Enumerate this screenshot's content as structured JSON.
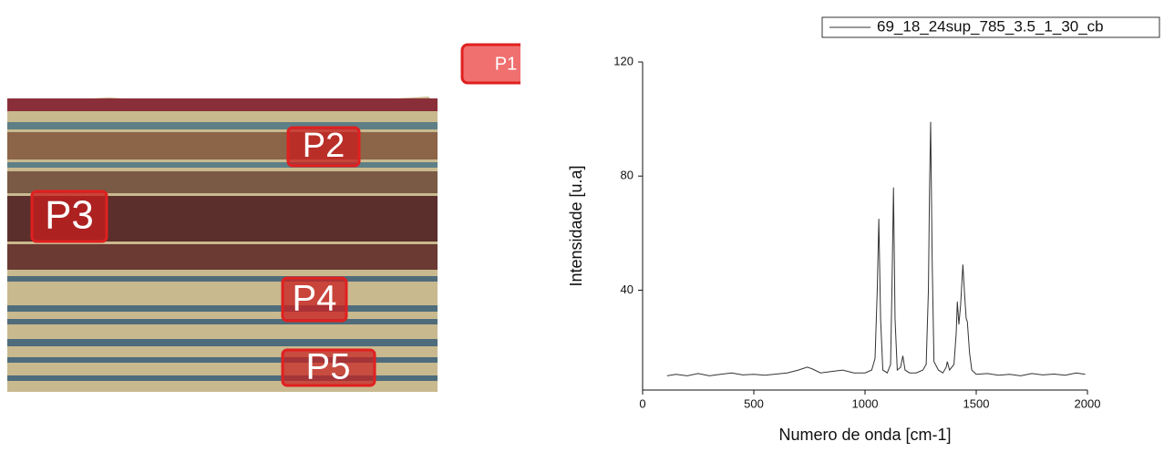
{
  "photo_labels": [
    "P1",
    "P2",
    "P3",
    "P4",
    "P5"
  ],
  "chart_data": {
    "type": "line",
    "xlabel": "Numero de onda [cm-1]",
    "ylabel": "Intensidade [u.a]",
    "x": [
      110,
      150,
      200,
      250,
      300,
      350,
      400,
      450,
      500,
      550,
      600,
      650,
      700,
      740,
      760,
      800,
      850,
      900,
      950,
      1000,
      1030,
      1045,
      1055,
      1062,
      1070,
      1080,
      1100,
      1115,
      1122,
      1128,
      1135,
      1145,
      1160,
      1170,
      1180,
      1200,
      1230,
      1260,
      1275,
      1285,
      1290,
      1295,
      1302,
      1310,
      1330,
      1350,
      1365,
      1370,
      1380,
      1400,
      1410,
      1415,
      1422,
      1430,
      1440,
      1448,
      1455,
      1460,
      1470,
      1480,
      1500,
      1550,
      1600,
      1650,
      1700,
      1750,
      1800,
      1850,
      1900,
      1950,
      1990
    ],
    "series": [
      {
        "name": "69_18_24sup_785_3.5_1_30_cb",
        "color": "#333333",
        "values": [
          10,
          10.5,
          10,
          10.8,
          10,
          10.5,
          11,
          10.3,
          10.5,
          10.2,
          10.6,
          11,
          12,
          13,
          12.5,
          11,
          11.5,
          12,
          11,
          11,
          12,
          16,
          40,
          65,
          30,
          12,
          11,
          14,
          45,
          76,
          30,
          12,
          13,
          17,
          12,
          11,
          11,
          12,
          14,
          40,
          75,
          99,
          50,
          15,
          12,
          11,
          13,
          15,
          12,
          14,
          25,
          36,
          28,
          35,
          49,
          38,
          30,
          29,
          18,
          12,
          10.5,
          10.8,
          10.2,
          10.5,
          10,
          10.8,
          10.3,
          10.6,
          10.2,
          11,
          10.5
        ]
      }
    ],
    "xlim": [
      0,
      2000
    ],
    "xticks": [
      0,
      500,
      1000,
      1500,
      2000
    ],
    "ylim": [
      5,
      120
    ],
    "yticks": [
      40,
      80,
      120
    ],
    "grid": false,
    "legend": "top-right"
  }
}
